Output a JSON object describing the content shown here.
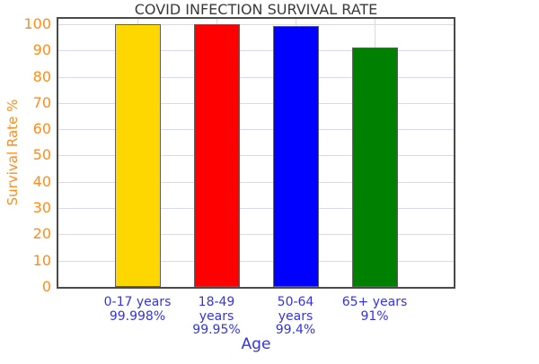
{
  "chart_data": {
    "type": "bar",
    "title": "COVID INFECTION SURVIVAL RATE",
    "xlabel": "Age",
    "ylabel": "Survival Rate %",
    "categories": [
      "0-17 years",
      "18-49 years",
      "50-64 years",
      "65+ years"
    ],
    "values": [
      99.998,
      99.95,
      99.4,
      91
    ],
    "value_labels": [
      "99.998%",
      "99.95%",
      "99.4%",
      "91%"
    ],
    "x_tick_lines": [
      [
        "0-17 years",
        "99.998%"
      ],
      [
        "18-49",
        "years",
        "99.95%"
      ],
      [
        "50-64",
        "years",
        "99.4%"
      ],
      [
        "65+ years",
        "91%"
      ]
    ],
    "bar_colors": [
      "#FFD700",
      "#FF0000",
      "#0000FF",
      "#008000"
    ],
    "yticks": [
      0,
      10,
      20,
      30,
      40,
      50,
      60,
      70,
      80,
      90,
      100
    ],
    "ylim": [
      0,
      102
    ],
    "grid": true,
    "legend": "none",
    "colors": {
      "title": "#3A3A3A",
      "y_axis_text": "#FF8C1A",
      "x_axis_text": "#3434E0",
      "gridline": "#D8D8F0",
      "spine": "#4A4A4A",
      "bar_edge": "#606060",
      "background": "#FFFFFF"
    }
  }
}
